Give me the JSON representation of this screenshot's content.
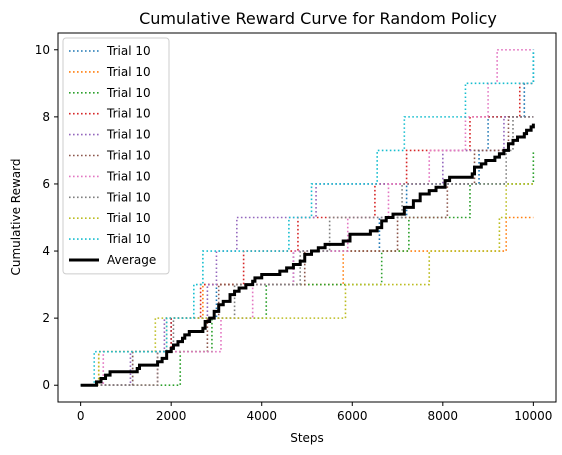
{
  "chart_data": {
    "type": "line",
    "title": "Cumulative Reward Curve for Random Policy",
    "xlabel": "Steps",
    "ylabel": "Cumulative Reward",
    "xlim": [
      -500,
      10500
    ],
    "ylim": [
      -0.5,
      10.5
    ],
    "xticks": [
      0,
      2000,
      4000,
      6000,
      8000,
      10000
    ],
    "yticks": [
      0,
      2,
      4,
      6,
      8,
      10
    ],
    "grid": false,
    "legend_position": "upper-left",
    "series": [
      {
        "name": "Trial 10",
        "color": "#1f77b4",
        "style": "dotted",
        "steps": [
          [
            0,
            0
          ],
          [
            1150,
            1
          ],
          [
            2000,
            2
          ],
          [
            3000,
            3
          ],
          [
            4700,
            4
          ],
          [
            6600,
            5
          ],
          [
            7200,
            6
          ],
          [
            8800,
            7
          ],
          [
            9000,
            8
          ],
          [
            9800,
            9
          ],
          [
            10000,
            10
          ]
        ]
      },
      {
        "name": "Trial 10",
        "color": "#ff7f0e",
        "style": "dotted",
        "steps": [
          [
            0,
            0
          ],
          [
            400,
            1
          ],
          [
            1900,
            2
          ],
          [
            2700,
            3
          ],
          [
            5800,
            4
          ],
          [
            9400,
            5
          ]
        ]
      },
      {
        "name": "Trial 10",
        "color": "#2ca02c",
        "style": "dotted",
        "steps": [
          [
            0,
            0
          ],
          [
            2200,
            1
          ],
          [
            2900,
            2
          ],
          [
            4100,
            3
          ],
          [
            6650,
            4
          ],
          [
            7250,
            5
          ],
          [
            8600,
            6
          ],
          [
            10000,
            7
          ]
        ]
      },
      {
        "name": "Trial 10",
        "color": "#d62728",
        "style": "dotted",
        "steps": [
          [
            0,
            0
          ],
          [
            1700,
            1
          ],
          [
            2000,
            2
          ],
          [
            2650,
            3
          ],
          [
            3600,
            4
          ],
          [
            4800,
            5
          ],
          [
            6500,
            6
          ],
          [
            7200,
            7
          ],
          [
            8600,
            8
          ],
          [
            9700,
            9
          ]
        ]
      },
      {
        "name": "Trial 10",
        "color": "#9467bd",
        "style": "dotted",
        "steps": [
          [
            0,
            0
          ],
          [
            1100,
            1
          ],
          [
            1850,
            2
          ],
          [
            2800,
            3
          ],
          [
            3000,
            4
          ],
          [
            3450,
            5
          ],
          [
            5200,
            6
          ],
          [
            8000,
            7
          ],
          [
            9350,
            8
          ]
        ]
      },
      {
        "name": "Trial 10",
        "color": "#8c564b",
        "style": "dotted",
        "steps": [
          [
            0,
            0
          ],
          [
            1150,
            1
          ],
          [
            2800,
            2
          ],
          [
            3050,
            3
          ],
          [
            4950,
            4
          ],
          [
            7000,
            5
          ],
          [
            8100,
            6
          ],
          [
            8700,
            7
          ],
          [
            9450,
            8
          ]
        ]
      },
      {
        "name": "Trial 10",
        "color": "#e377c2",
        "style": "dotted",
        "steps": [
          [
            0,
            0
          ],
          [
            500,
            1
          ],
          [
            3100,
            2
          ],
          [
            3800,
            3
          ],
          [
            4700,
            4
          ],
          [
            5900,
            5
          ],
          [
            6800,
            6
          ],
          [
            7700,
            7
          ],
          [
            8500,
            8
          ],
          [
            9000,
            9
          ],
          [
            9200,
            10
          ]
        ]
      },
      {
        "name": "Trial 10",
        "color": "#7f7f7f",
        "style": "dotted",
        "steps": [
          [
            0,
            0
          ],
          [
            1700,
            1
          ],
          [
            2050,
            2
          ],
          [
            3400,
            3
          ],
          [
            4850,
            4
          ],
          [
            5500,
            5
          ],
          [
            7100,
            6
          ],
          [
            9400,
            7
          ],
          [
            9550,
            8
          ]
        ]
      },
      {
        "name": "Trial 10",
        "color": "#bcbd22",
        "style": "dotted",
        "steps": [
          [
            0,
            0
          ],
          [
            400,
            1
          ],
          [
            1650,
            2
          ],
          [
            5850,
            3
          ],
          [
            7700,
            4
          ],
          [
            9250,
            5
          ],
          [
            9400,
            6
          ]
        ]
      },
      {
        "name": "Trial 10",
        "color": "#17becf",
        "style": "dotted",
        "steps": [
          [
            0,
            0
          ],
          [
            300,
            1
          ],
          [
            1900,
            2
          ],
          [
            2500,
            3
          ],
          [
            2700,
            4
          ],
          [
            4600,
            5
          ],
          [
            5100,
            6
          ],
          [
            6550,
            7
          ],
          [
            7150,
            8
          ],
          [
            8500,
            9
          ],
          [
            10000,
            10
          ]
        ]
      },
      {
        "name": "Average",
        "color": "#000000",
        "style": "solid-thick",
        "steps": [
          [
            0,
            0
          ],
          [
            350,
            0.1
          ],
          [
            450,
            0.2
          ],
          [
            550,
            0.3
          ],
          [
            650,
            0.4
          ],
          [
            1250,
            0.5
          ],
          [
            1300,
            0.6
          ],
          [
            1650,
            0.6
          ],
          [
            1700,
            0.7
          ],
          [
            1800,
            0.8
          ],
          [
            1900,
            1.0
          ],
          [
            2000,
            1.1
          ],
          [
            2050,
            1.2
          ],
          [
            2150,
            1.3
          ],
          [
            2250,
            1.4
          ],
          [
            2300,
            1.5
          ],
          [
            2400,
            1.6
          ],
          [
            2700,
            1.7
          ],
          [
            2750,
            1.9
          ],
          [
            2850,
            2.0
          ],
          [
            2950,
            2.2
          ],
          [
            3050,
            2.4
          ],
          [
            3150,
            2.5
          ],
          [
            3300,
            2.7
          ],
          [
            3400,
            2.8
          ],
          [
            3500,
            2.9
          ],
          [
            3650,
            3.0
          ],
          [
            3800,
            3.1
          ],
          [
            3850,
            3.2
          ],
          [
            4000,
            3.3
          ],
          [
            4400,
            3.4
          ],
          [
            4550,
            3.5
          ],
          [
            4700,
            3.6
          ],
          [
            4850,
            3.7
          ],
          [
            4950,
            3.9
          ],
          [
            5100,
            4.0
          ],
          [
            5250,
            4.1
          ],
          [
            5400,
            4.2
          ],
          [
            5800,
            4.3
          ],
          [
            5950,
            4.5
          ],
          [
            6400,
            4.6
          ],
          [
            6550,
            4.7
          ],
          [
            6650,
            4.9
          ],
          [
            6750,
            5.0
          ],
          [
            6900,
            5.1
          ],
          [
            7150,
            5.3
          ],
          [
            7350,
            5.5
          ],
          [
            7500,
            5.7
          ],
          [
            7700,
            5.8
          ],
          [
            7850,
            5.9
          ],
          [
            8050,
            6.1
          ],
          [
            8150,
            6.2
          ],
          [
            8650,
            6.3
          ],
          [
            8700,
            6.5
          ],
          [
            8850,
            6.6
          ],
          [
            8950,
            6.7
          ],
          [
            9150,
            6.8
          ],
          [
            9250,
            6.9
          ],
          [
            9350,
            7.0
          ],
          [
            9450,
            7.2
          ],
          [
            9550,
            7.3
          ],
          [
            9650,
            7.4
          ],
          [
            9800,
            7.5
          ],
          [
            9850,
            7.6
          ],
          [
            9950,
            7.7
          ],
          [
            10000,
            7.8
          ]
        ]
      }
    ]
  }
}
